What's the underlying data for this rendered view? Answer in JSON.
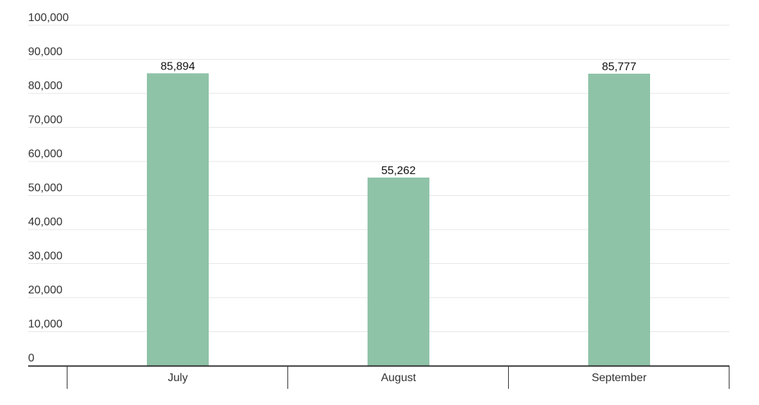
{
  "chart_data": {
    "type": "bar",
    "title": "",
    "xlabel": "",
    "ylabel": "",
    "categories": [
      "July",
      "August",
      "September"
    ],
    "values": [
      85894,
      55262,
      85777
    ],
    "value_labels": [
      "85,894",
      "55,262",
      "85,777"
    ],
    "ylim": [
      0,
      100000
    ],
    "yticks": [
      0,
      10000,
      20000,
      30000,
      40000,
      50000,
      60000,
      70000,
      80000,
      90000,
      100000
    ],
    "ytick_labels": [
      "0",
      "10,000",
      "20,000",
      "30,000",
      "40,000",
      "50,000",
      "60,000",
      "70,000",
      "80,000",
      "90,000",
      "100,000"
    ],
    "grid": true,
    "legend": "none",
    "colors": {
      "bar": "#8fc3a8",
      "grid": "#e6e6e6",
      "axis": "#333333",
      "text": "#333333",
      "value_label": "#111111"
    }
  }
}
